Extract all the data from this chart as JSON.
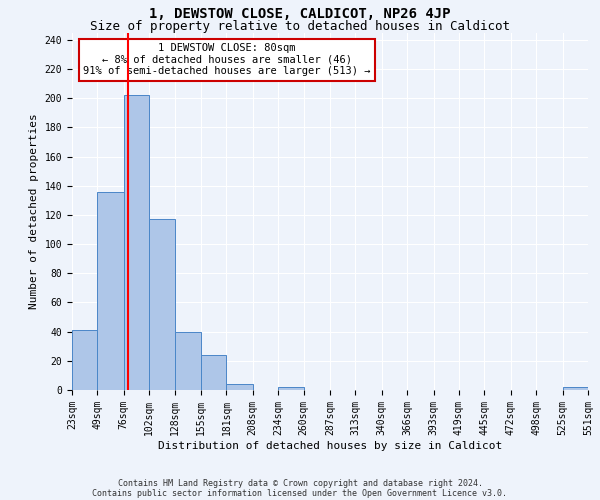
{
  "title": "1, DEWSTOW CLOSE, CALDICOT, NP26 4JP",
  "subtitle": "Size of property relative to detached houses in Caldicot",
  "xlabel": "Distribution of detached houses by size in Caldicot",
  "ylabel": "Number of detached properties",
  "footnote1": "Contains HM Land Registry data © Crown copyright and database right 2024.",
  "footnote2": "Contains public sector information licensed under the Open Government Licence v3.0.",
  "annotation_line1": "1 DEWSTOW CLOSE: 80sqm",
  "annotation_line2": "← 8% of detached houses are smaller (46)",
  "annotation_line3": "91% of semi-detached houses are larger (513) →",
  "property_size": 80,
  "bar_edges": [
    23,
    49,
    76,
    102,
    128,
    155,
    181,
    208,
    234,
    260,
    287,
    313,
    340,
    366,
    393,
    419,
    445,
    472,
    498,
    525,
    551
  ],
  "bar_heights": [
    41,
    136,
    202,
    117,
    40,
    24,
    4,
    0,
    2,
    0,
    0,
    0,
    0,
    0,
    0,
    0,
    0,
    0,
    0,
    2
  ],
  "bar_color": "#aec6e8",
  "bar_edge_color": "#4a86c8",
  "red_line_x": 80,
  "ylim": [
    0,
    245
  ],
  "yticks": [
    0,
    20,
    40,
    60,
    80,
    100,
    120,
    140,
    160,
    180,
    200,
    220,
    240
  ],
  "bg_color": "#eef3fb",
  "grid_color": "#ffffff",
  "annotation_box_color": "#ffffff",
  "annotation_box_edge_color": "#cc0000",
  "title_fontsize": 10,
  "subtitle_fontsize": 9,
  "tick_label_fontsize": 7,
  "ylabel_fontsize": 8,
  "xlabel_fontsize": 8,
  "footnote_fontsize": 6,
  "annotation_fontsize": 7.5
}
